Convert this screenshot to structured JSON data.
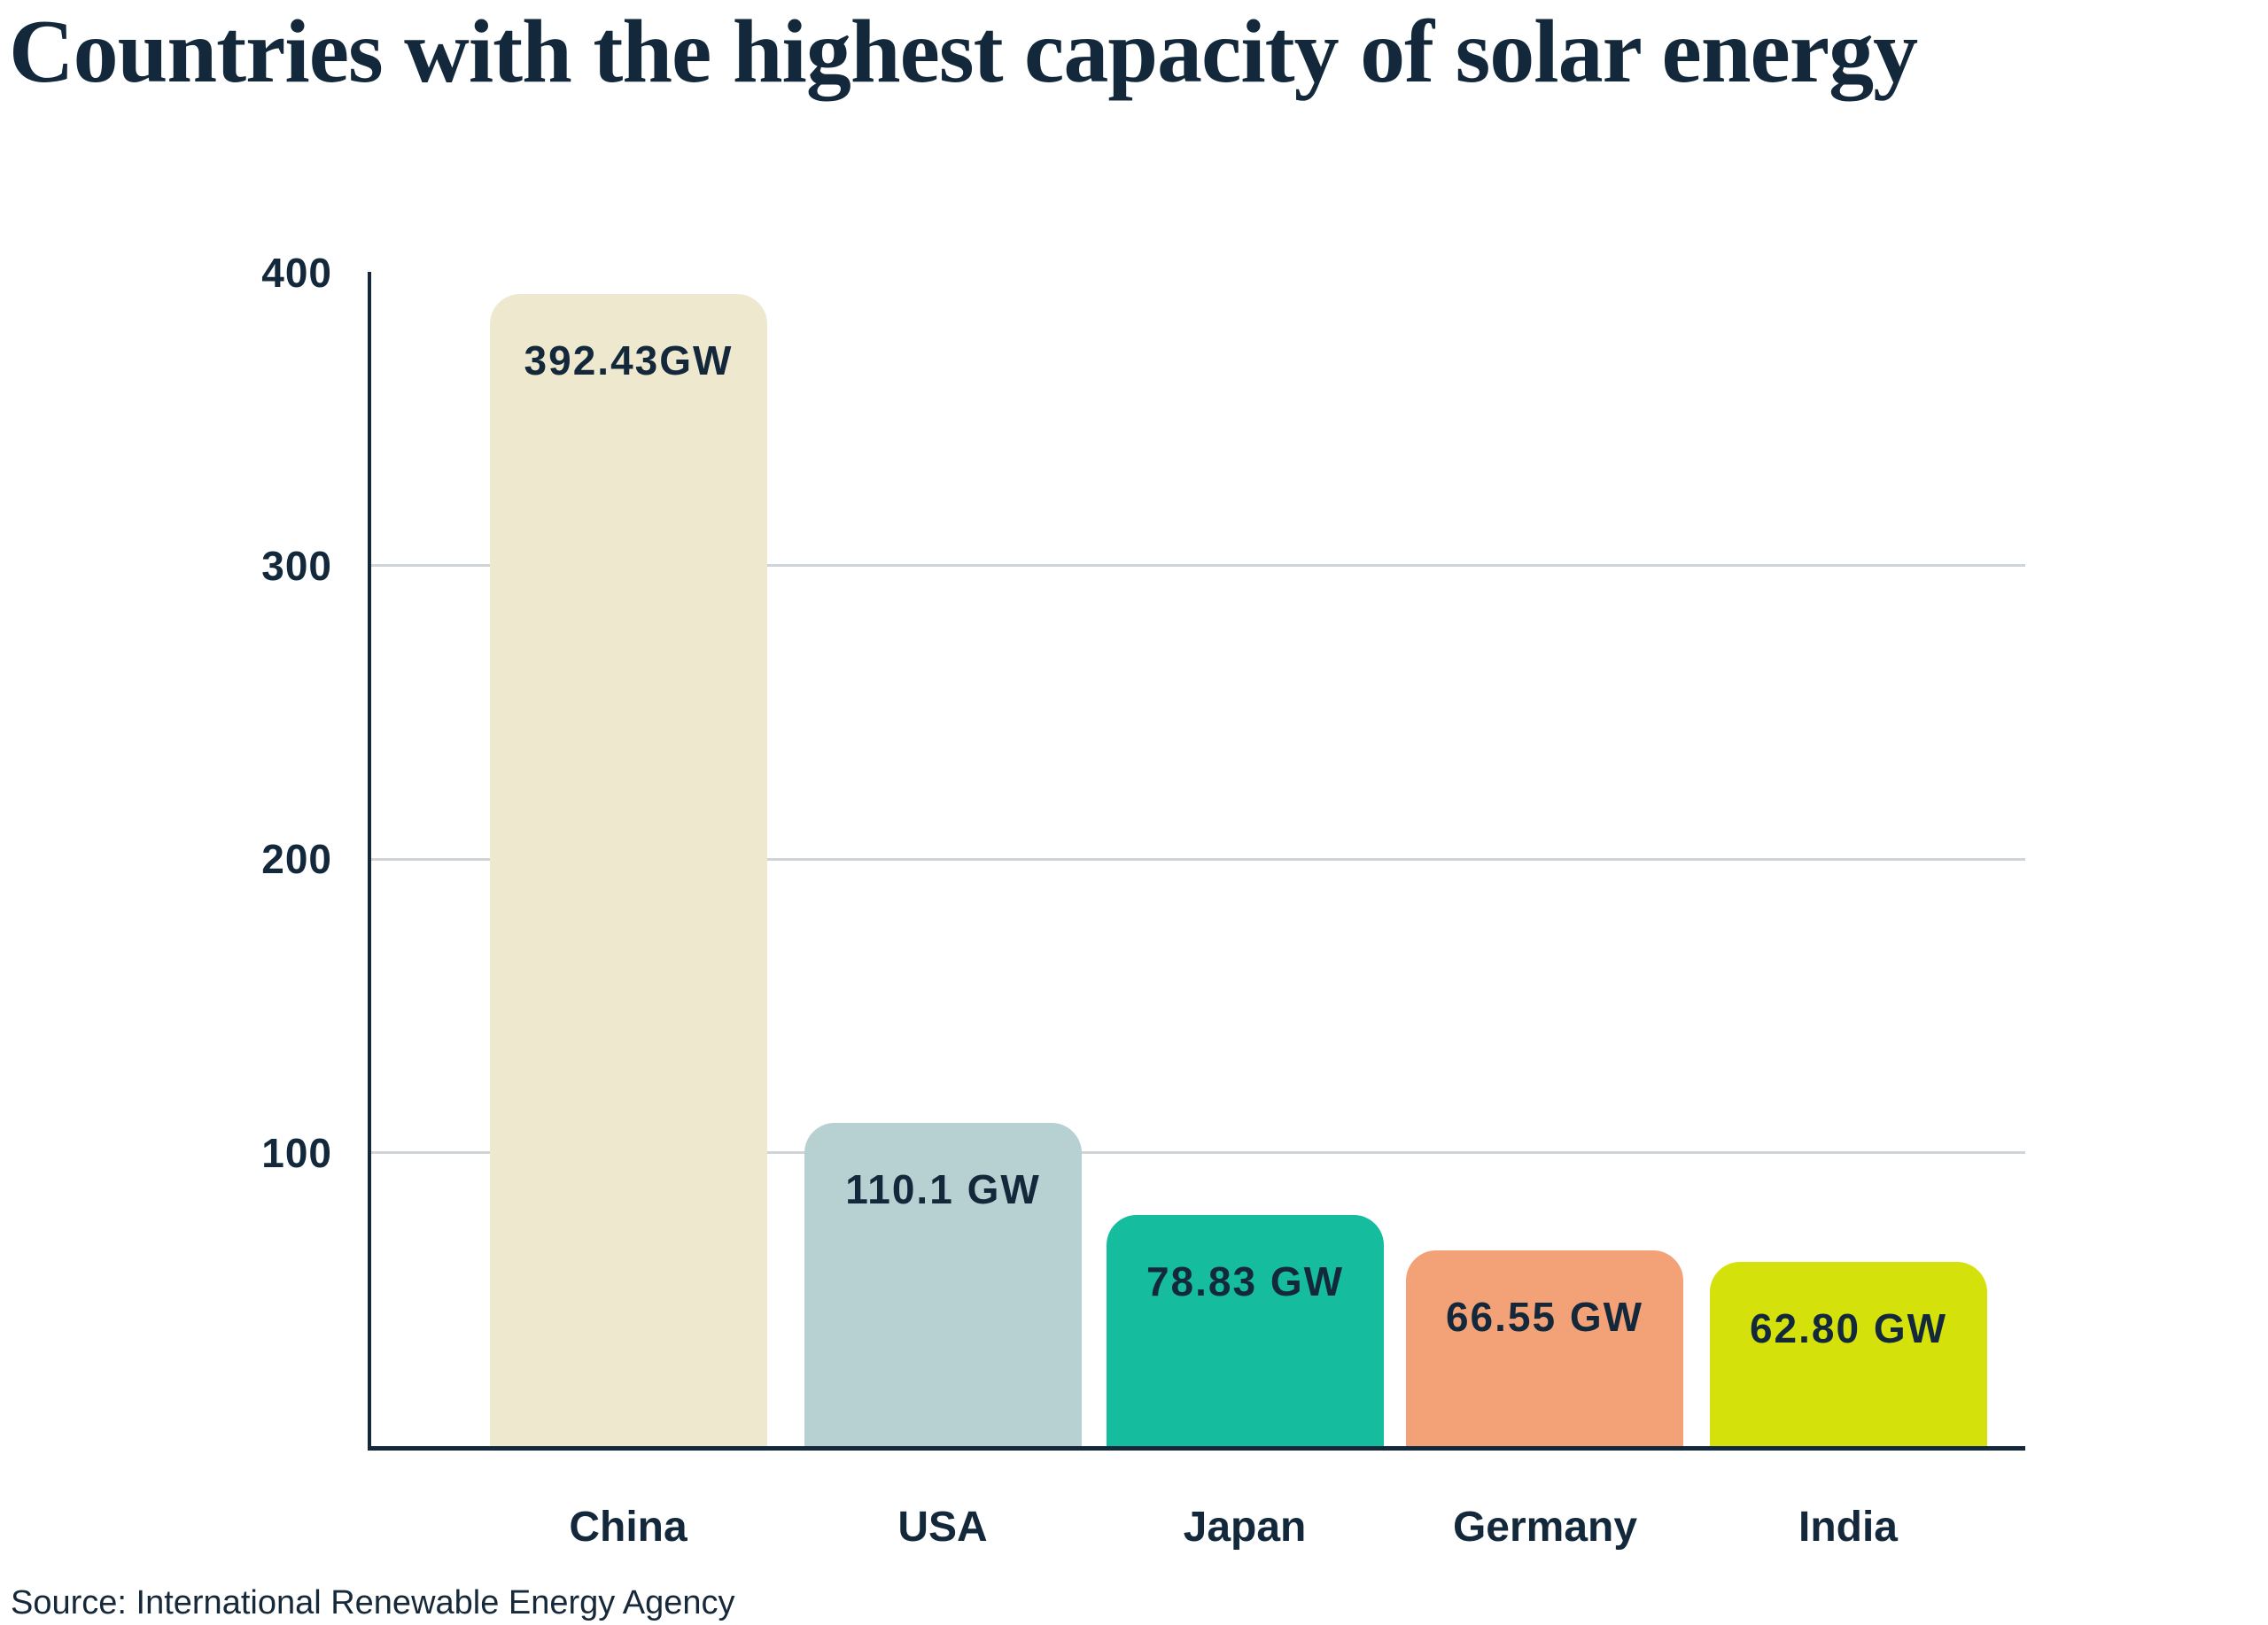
{
  "page": {
    "title": "Countries with the highest capacity of solar energy",
    "source": "Source: International Renewable Energy Agency"
  },
  "chart": {
    "yticks": [
      "400",
      "300",
      "200",
      "100"
    ],
    "bars": [
      {
        "category": "China",
        "value_label": "392.43GW"
      },
      {
        "category": "USA",
        "value_label": "110.1 GW"
      },
      {
        "category": "Japan",
        "value_label": "78.83 GW"
      },
      {
        "category": "Germany",
        "value_label": "66.55 GW"
      },
      {
        "category": "India",
        "value_label": "62.80 GW"
      }
    ]
  },
  "chart_data": {
    "type": "bar",
    "title": "Countries with the highest capacity of solar energy",
    "categories": [
      "China",
      "USA",
      "Japan",
      "Germany",
      "India"
    ],
    "values": [
      392.43,
      110.1,
      78.83,
      66.55,
      62.8
    ],
    "unit": "GW",
    "value_labels": [
      "392.43GW",
      "110.1 GW",
      "78.83 GW",
      "66.55 GW",
      "62.80 GW"
    ],
    "bar_colors": [
      "#EEE9CE",
      "#B7D0D1",
      "#15BC9D",
      "#F3A277",
      "#D5E10B"
    ],
    "xlabel": "",
    "ylabel": "",
    "ylim": [
      0,
      400
    ],
    "yticks": [
      400,
      300,
      200,
      100
    ],
    "gridlines_at": [
      300,
      200,
      100
    ],
    "grid": "horizontal",
    "legend": "none",
    "source": "Source: International Renewable Energy Agency",
    "colors": {
      "text": "#13293B",
      "axis": "#13293B",
      "gridline": "#CFD4D8",
      "background": "#FFFFFF"
    }
  }
}
